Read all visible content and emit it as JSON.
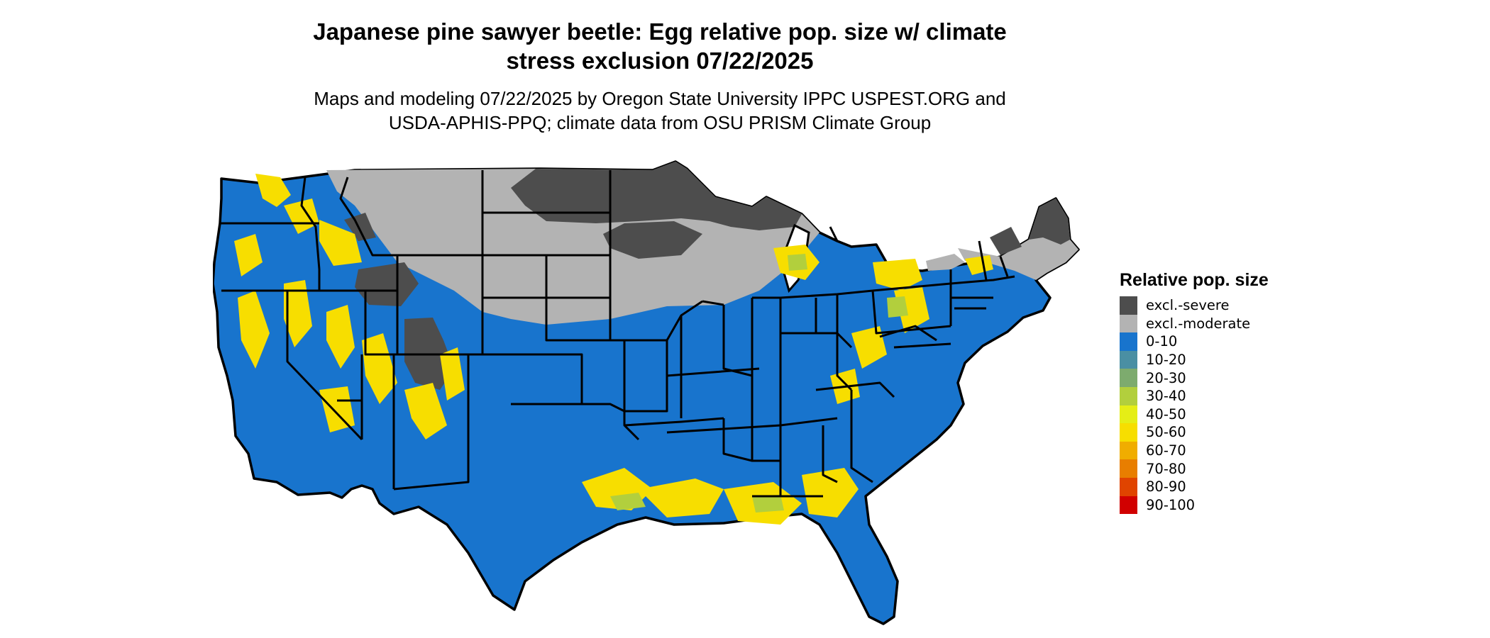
{
  "title": {
    "line1": "Japanese pine sawyer beetle: Egg relative pop. size w/ climate",
    "line2": "stress exclusion 07/22/2025"
  },
  "subtitle": {
    "line1": "Maps and modeling 07/22/2025 by Oregon State University IPPC USPEST.ORG and",
    "line2": "USDA-APHIS-PPQ; climate data from OSU PRISM Climate Group"
  },
  "map": {
    "region": "Contiguous United States",
    "colors": {
      "state_border": "#000000",
      "land_default": "#1f77d0"
    }
  },
  "legend": {
    "title": "Relative pop. size",
    "items": [
      {
        "label": "excl.-severe",
        "color": "#4d4d4d"
      },
      {
        "label": "excl.-moderate",
        "color": "#b3b3b3"
      },
      {
        "label": "0-10",
        "color": "#1874cd"
      },
      {
        "label": "10-20",
        "color": "#4a8fa3"
      },
      {
        "label": "20-30",
        "color": "#7dab6e"
      },
      {
        "label": "30-40",
        "color": "#b2cf3d"
      },
      {
        "label": "40-50",
        "color": "#e5ee16"
      },
      {
        "label": "50-60",
        "color": "#f7de00"
      },
      {
        "label": "60-70",
        "color": "#f0ad00"
      },
      {
        "label": "70-80",
        "color": "#e87e00"
      },
      {
        "label": "80-90",
        "color": "#e04400"
      },
      {
        "label": "90-100",
        "color": "#d10000"
      }
    ]
  }
}
